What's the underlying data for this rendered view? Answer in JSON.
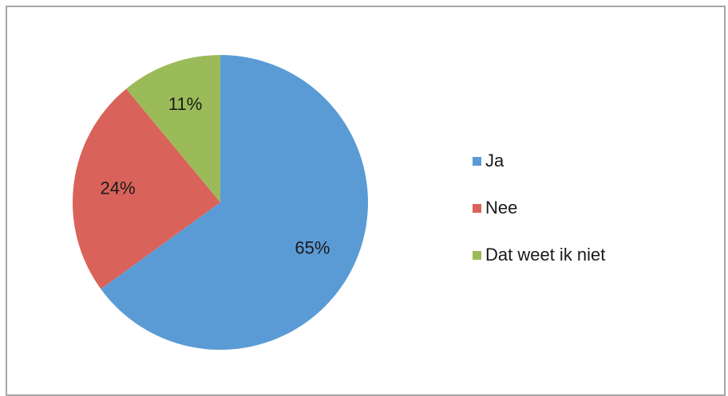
{
  "chart_data": {
    "type": "pie",
    "title": "",
    "categories": [
      "Ja",
      "Nee",
      "Dat weet ik niet"
    ],
    "values": [
      65,
      24,
      11
    ],
    "labels": [
      "65%",
      "24%",
      "11%"
    ],
    "colors": [
      "#5b9bd5",
      "#d9625b",
      "#9bbb59"
    ],
    "start_angle_deg": 0,
    "direction": "clockwise",
    "legend_position": "right"
  }
}
